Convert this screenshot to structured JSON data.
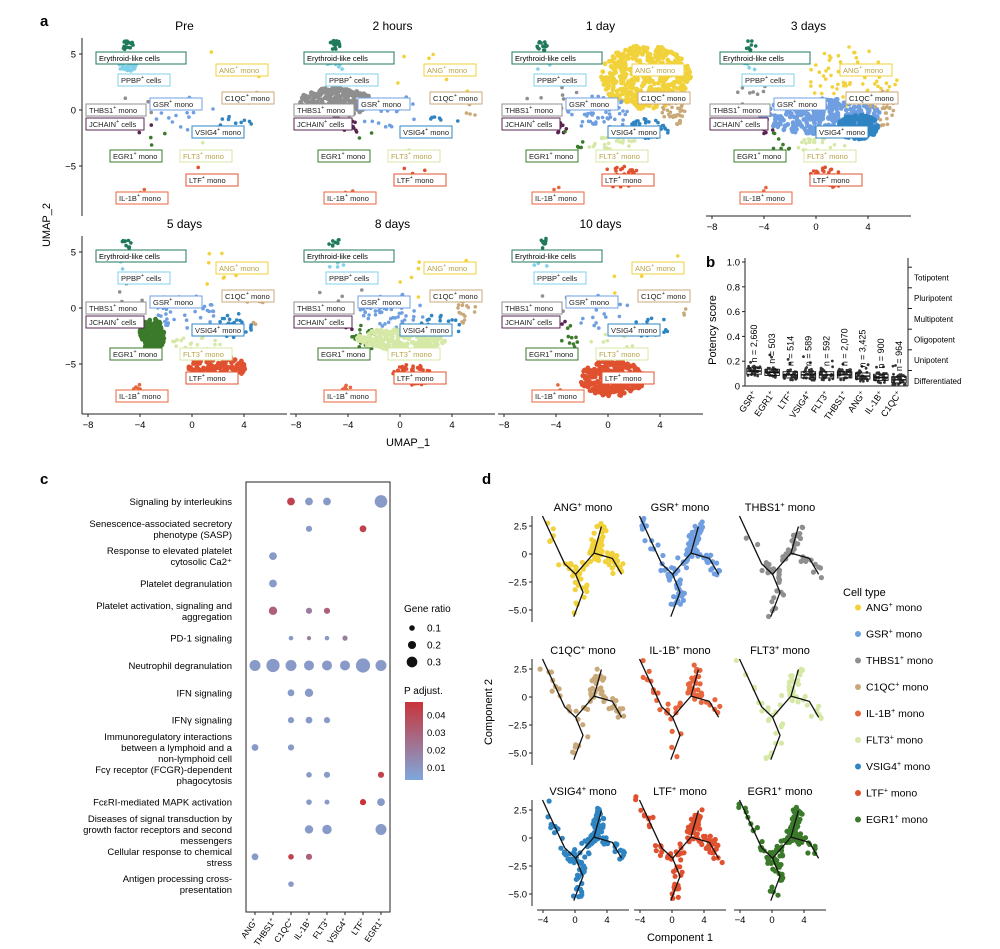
{
  "panel_letters": {
    "a": "a",
    "b": "b",
    "c": "c",
    "d": "d"
  },
  "colors": {
    "ANG": "#f2d23b",
    "GSR": "#6f9fe0",
    "THBS1": "#8f8f8f",
    "C1QC": "#c9a979",
    "IL1B": "#e8663e",
    "FLT3": "#d6e8a6",
    "VSIG4": "#2f84c2",
    "LTF": "#e0512f",
    "EGR1": "#3b7a2b",
    "ERY": "#1f7a5a",
    "PPBP": "#7fd0ea",
    "JCHAIN": "#5a2450",
    "dotLow": "#7fa8dc",
    "dotHigh": "#c8343a"
  },
  "panel_a": {
    "timepoints": [
      "Pre",
      "2 hours",
      "1 day",
      "3 days",
      "5 days",
      "8 days",
      "10 days"
    ],
    "labels": {
      "ery": "Erythroid-like cells",
      "ppbp_pre": "PPBP",
      "ppbp_sup": "+",
      "ppbp_post": " cells",
      "ang_pre": "ANG",
      "ang_sup": "+",
      "ang_post": " mono",
      "thbs1_pre": "THBS1",
      "thbs1_sup": "+",
      "thbs1_post": " mono",
      "gsr_pre": "GSR",
      "gsr_sup": "+",
      "gsr_post": " mono",
      "c1qc_pre": "C1QC",
      "c1qc_sup": "+",
      "c1qc_post": " mono",
      "jchain_pre": "JCHAIN",
      "jchain_sup": "+",
      "jchain_post": " cells",
      "vsig4_pre": "VSIG4",
      "vsig4_sup": "+",
      "vsig4_post": " mono",
      "egr1_pre": "EGR1",
      "egr1_sup": "+",
      "egr1_post": " mono",
      "flt3_pre": "FLT3",
      "flt3_sup": "+",
      "flt3_post": " mono",
      "ltf_pre": "LTF",
      "ltf_sup": "+",
      "ltf_post": " mono",
      "il1b_pre": "IL-1B",
      "il1b_sup": "+",
      "il1b_post": " mono"
    },
    "xlabel": "UMAP_1",
    "ylabel": "UMAP_2",
    "xticks": [
      "−8",
      "−4",
      "0",
      "4"
    ],
    "yticks": [
      "5",
      "0",
      "−5"
    ]
  },
  "panel_b": {
    "ylabel": "Potency score",
    "yticks": [
      "0",
      "0.2",
      "0.4",
      "0.6",
      "0.8",
      "1.0"
    ],
    "categories": [
      "GSR",
      "EGR1",
      "LTF",
      "VSIG4",
      "FLT3",
      "THBS1",
      "ANG",
      "IL-1B",
      "C1QC"
    ],
    "sup": "+",
    "n_labels": [
      "n = 2,660",
      "n = 503",
      "n = 514",
      "n = 589",
      "n = 592",
      "n = 2,070",
      "n = 3,425",
      "n = 900",
      "n = 964"
    ],
    "potency_levels": [
      "Totipotent",
      "Pluripotent",
      "Multipotent",
      "Oligopotent",
      "Unipotent",
      "Differentiated"
    ]
  },
  "panel_c": {
    "pathways": [
      [
        "Signaling by interleukins"
      ],
      [
        "Senescence-associated secretory",
        "phenotype (SASP)"
      ],
      [
        "Response to elevated platelet",
        "cytosolic Ca2⁺"
      ],
      [
        "Platelet degranulation"
      ],
      [
        "Platelet activation, signaling and",
        "aggregation"
      ],
      [
        "PD-1 signaling"
      ],
      [
        "Neutrophil degranulation"
      ],
      [
        "IFN signaling"
      ],
      [
        "IFNγ signaling"
      ],
      [
        "Immunoregulatory interactions",
        "between a lymphoid and a",
        "non-lymphoid cell"
      ],
      [
        "Fcγ receptor (FCGR)-dependent",
        "phagocytosis"
      ],
      [
        "FcεRI-mediated MAPK activation"
      ],
      [
        "Diseases of signal transduction by",
        "growth factor receptors and second",
        "messengers"
      ],
      [
        "Cellular response to chemical",
        "stress"
      ],
      [
        "Antigen processing cross-",
        "presentation"
      ]
    ],
    "columns": [
      "ANG",
      "THBS1",
      "C1QC",
      "IL-1B",
      "FLT3",
      "VSIG4",
      "LTF",
      "EGR1"
    ],
    "sup": "+",
    "gene_ratio_title": "Gene ratio",
    "gene_ratio_levels": [
      "0.1",
      "0.2",
      "0.3"
    ],
    "padj_title": "P adjust.",
    "padj_ticks": [
      "0.04",
      "0.03",
      "0.02",
      "0.01"
    ]
  },
  "panel_d": {
    "titles": [
      "ANG",
      "GSR",
      "THBS1",
      "C1QC",
      "IL-1B",
      "FLT3",
      "VSIG4",
      "LTF",
      "EGR1"
    ],
    "sup": "+",
    "title_suffix": " mono",
    "xticks": [
      "−4",
      "0",
      "4"
    ],
    "yticks": [
      "2.5",
      "0",
      "−2.5",
      "−5.0"
    ],
    "xlabel": "Component 1",
    "ylabel": "Component 2",
    "legend_title": "Cell type",
    "legend_items": [
      "ANG",
      "GSR",
      "THBS1",
      "C1QC",
      "IL-1B",
      "FLT3",
      "VSIG4",
      "LTF",
      "EGR1"
    ]
  },
  "chart_data": [
    {
      "type": "scatter",
      "panel": "b",
      "ylabel": "Potency score",
      "ylim": [
        0,
        1.0
      ],
      "categories": [
        "GSR+",
        "EGR1+",
        "LTF+",
        "VSIG4+",
        "FLT3+",
        "THBS1+",
        "ANG+",
        "IL-1B+",
        "C1QC+"
      ],
      "median": [
        0.12,
        0.11,
        0.09,
        0.09,
        0.09,
        0.09,
        0.08,
        0.07,
        0.05
      ],
      "n": [
        2660,
        503,
        514,
        589,
        592,
        2070,
        3425,
        900,
        964
      ]
    },
    {
      "type": "scatter",
      "panel": "c",
      "x": [
        "ANG+",
        "THBS1+",
        "C1QC+",
        "IL-1B+",
        "FLT3+",
        "VSIG4+",
        "LTF+",
        "EGR1+"
      ],
      "points": [
        {
          "pathway": 0,
          "col": 2,
          "ratio": 0.15,
          "padj": 0.04
        },
        {
          "pathway": 0,
          "col": 3,
          "ratio": 0.15,
          "padj": 0.01
        },
        {
          "pathway": 0,
          "col": 4,
          "ratio": 0.15,
          "padj": 0.01
        },
        {
          "pathway": 0,
          "col": 7,
          "ratio": 0.3,
          "padj": 0.01
        },
        {
          "pathway": 1,
          "col": 3,
          "ratio": 0.1,
          "padj": 0.01
        },
        {
          "pathway": 1,
          "col": 6,
          "ratio": 0.12,
          "padj": 0.04
        },
        {
          "pathway": 2,
          "col": 1,
          "ratio": 0.15,
          "padj": 0.01
        },
        {
          "pathway": 3,
          "col": 1,
          "ratio": 0.15,
          "padj": 0.01
        },
        {
          "pathway": 4,
          "col": 1,
          "ratio": 0.17,
          "padj": 0.03
        },
        {
          "pathway": 4,
          "col": 3,
          "ratio": 0.1,
          "padj": 0.02
        },
        {
          "pathway": 4,
          "col": 4,
          "ratio": 0.1,
          "padj": 0.03
        },
        {
          "pathway": 5,
          "col": 2,
          "ratio": 0.05,
          "padj": 0.01
        },
        {
          "pathway": 5,
          "col": 3,
          "ratio": 0.04,
          "padj": 0.02
        },
        {
          "pathway": 5,
          "col": 4,
          "ratio": 0.05,
          "padj": 0.01
        },
        {
          "pathway": 5,
          "col": 5,
          "ratio": 0.07,
          "padj": 0.02
        },
        {
          "pathway": 6,
          "col": 0,
          "ratio": 0.25,
          "padj": 0.01
        },
        {
          "pathway": 6,
          "col": 1,
          "ratio": 0.32,
          "padj": 0.01
        },
        {
          "pathway": 6,
          "col": 2,
          "ratio": 0.25,
          "padj": 0.01
        },
        {
          "pathway": 6,
          "col": 3,
          "ratio": 0.22,
          "padj": 0.01
        },
        {
          "pathway": 6,
          "col": 4,
          "ratio": 0.22,
          "padj": 0.01
        },
        {
          "pathway": 6,
          "col": 5,
          "ratio": 0.22,
          "padj": 0.01
        },
        {
          "pathway": 6,
          "col": 6,
          "ratio": 0.35,
          "padj": 0.01
        },
        {
          "pathway": 6,
          "col": 7,
          "ratio": 0.25,
          "padj": 0.01
        },
        {
          "pathway": 7,
          "col": 2,
          "ratio": 0.12,
          "padj": 0.01
        },
        {
          "pathway": 7,
          "col": 3,
          "ratio": 0.17,
          "padj": 0.01
        },
        {
          "pathway": 8,
          "col": 2,
          "ratio": 0.1,
          "padj": 0.01
        },
        {
          "pathway": 8,
          "col": 3,
          "ratio": 0.12,
          "padj": 0.01
        },
        {
          "pathway": 8,
          "col": 4,
          "ratio": 0.1,
          "padj": 0.01
        },
        {
          "pathway": 9,
          "col": 0,
          "ratio": 0.12,
          "padj": 0.01
        },
        {
          "pathway": 9,
          "col": 2,
          "ratio": 0.1,
          "padj": 0.01
        },
        {
          "pathway": 10,
          "col": 3,
          "ratio": 0.08,
          "padj": 0.01
        },
        {
          "pathway": 10,
          "col": 4,
          "ratio": 0.1,
          "padj": 0.01
        },
        {
          "pathway": 10,
          "col": 7,
          "ratio": 0.1,
          "padj": 0.04
        },
        {
          "pathway": 11,
          "col": 3,
          "ratio": 0.08,
          "padj": 0.01
        },
        {
          "pathway": 11,
          "col": 4,
          "ratio": 0.06,
          "padj": 0.01
        },
        {
          "pathway": 11,
          "col": 6,
          "ratio": 0.1,
          "padj": 0.045
        },
        {
          "pathway": 11,
          "col": 7,
          "ratio": 0.15,
          "padj": 0.01
        },
        {
          "pathway": 12,
          "col": 3,
          "ratio": 0.17,
          "padj": 0.01
        },
        {
          "pathway": 12,
          "col": 4,
          "ratio": 0.2,
          "padj": 0.01
        },
        {
          "pathway": 12,
          "col": 7,
          "ratio": 0.25,
          "padj": 0.01
        },
        {
          "pathway": 13,
          "col": 0,
          "ratio": 0.12,
          "padj": 0.01
        },
        {
          "pathway": 13,
          "col": 2,
          "ratio": 0.08,
          "padj": 0.04
        },
        {
          "pathway": 13,
          "col": 3,
          "ratio": 0.1,
          "padj": 0.03
        },
        {
          "pathway": 14,
          "col": 2,
          "ratio": 0.08,
          "padj": 0.01
        }
      ]
    }
  ]
}
